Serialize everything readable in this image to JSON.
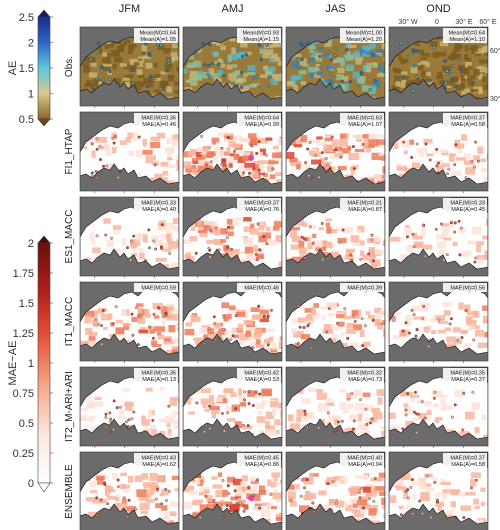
{
  "columns": [
    "JFM",
    "AMJ",
    "JAS",
    "OND"
  ],
  "rows": [
    {
      "label": "Obs.",
      "stats": [
        [
          "Mean(M)=0.64",
          "Mean(A)=1.05"
        ],
        [
          "Mean(M)=0.93",
          "Mean(A)=1.15"
        ],
        [
          "Mean(M)=1.00",
          "Mean(A)=1.20"
        ],
        [
          "Mean(M)=0.64",
          "Mean(A)=1.10"
        ]
      ]
    },
    {
      "label": "FI1_HTAP",
      "stats": [
        [
          "MAE(M)=0.36",
          "MAE(A)=0.46"
        ],
        [
          "MAE(M)=0.64",
          "MAE(A)=0.99"
        ],
        [
          "MAE(M)=0.63",
          "MAE(A)=1.07"
        ],
        [
          "MAE(M)=0.37",
          "MAE(A)=0.58"
        ]
      ]
    },
    {
      "label": "ES1_MACC",
      "stats": [
        [
          "MAE(M)=0.33",
          "MAE(A)=0.40"
        ],
        [
          "MAE(M)=0.37",
          "MAE(A)=0.76"
        ],
        [
          "MAE(M)=0.31",
          "MAE(A)=0.87"
        ],
        [
          "MAE(M)=0.33",
          "MAE(A)=0.45"
        ]
      ]
    },
    {
      "label": "IT1_MACC",
      "stats": [
        [
          "MAE(M)=0.59",
          ""
        ],
        [
          "MAE(M)=0.46",
          ""
        ],
        [
          "MAE(M)=0.39",
          ""
        ],
        [
          "MAE(M)=0.56",
          ""
        ]
      ]
    },
    {
      "label": "IT2_M-ARI+ARI",
      "stats": [
        [
          "MAE(M)=0.35",
          "MAE(A)=0.13"
        ],
        [
          "MAE(M)=0.42",
          "MAE(A)=0.53"
        ],
        [
          "MAE(M)=0.32",
          "MAE(A)=0.73"
        ],
        [
          "MAE(M)=0.35",
          "MAE(A)=0.37"
        ]
      ]
    },
    {
      "label": "ENSEMBLE",
      "stats": [
        [
          "MAE(M)=0.43",
          "MAE(A)=0.62"
        ],
        [
          "MAE(M)=0.45",
          "MAE(A)=0.86"
        ],
        [
          "MAE(M)=0.40",
          "MAE(A)=0.94"
        ],
        [
          "MAE(M)=0.37",
          "MAE(A)=0.58"
        ]
      ]
    }
  ],
  "axis_labels": {
    "lon": [
      "30° W",
      "0",
      "30° E",
      "60° E"
    ],
    "lat": [
      "60° N",
      "30° N"
    ]
  },
  "colorbars": {
    "ae": {
      "label": "AE",
      "ticks": [
        "2.5",
        "2",
        "1.5",
        "1",
        "0.5"
      ],
      "colors": [
        "#1a2a8c",
        "#2f66c8",
        "#5bc8d8",
        "#d9c98a",
        "#8a6428"
      ]
    },
    "mae": {
      "label": "MAE−AE",
      "ticks": [
        "2",
        "1.75",
        "1.5",
        "1.25",
        "1",
        "0.75",
        "0.5",
        "0.25",
        "0"
      ],
      "colors": [
        "#6b0d0d",
        "#b01e1e",
        "#e8553a",
        "#f7a98c",
        "#fce7df",
        "#ffffff"
      ]
    }
  },
  "map_colors": {
    "ocean": "#6b6b6b",
    "obs_land": "#9a7a3a",
    "coast": "#111111"
  }
}
